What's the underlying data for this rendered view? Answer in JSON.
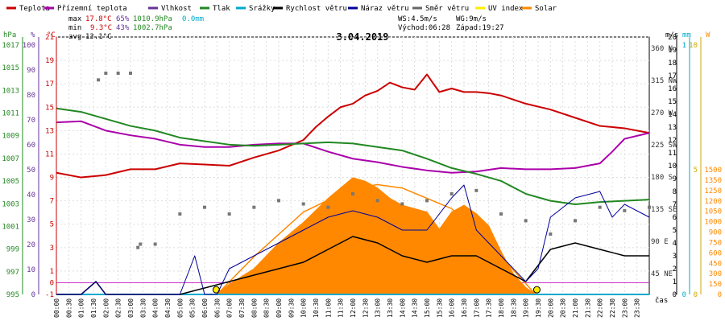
{
  "legend": [
    {
      "label": "Teplota",
      "color": "#cc0000"
    },
    {
      "label": "Přízemní teplota",
      "color": "#aa00aa"
    },
    {
      "label": "Vlhkost",
      "color": "#663399"
    },
    {
      "label": "Tlak",
      "color": "#228822"
    },
    {
      "label": "Srážky",
      "color": "#00aacc"
    },
    {
      "label": "Rychlost větru",
      "color": "#000000"
    },
    {
      "label": "Náraz větru",
      "color": "#000099"
    },
    {
      "label": "Směr větru",
      "color": "#666666"
    },
    {
      "label": "UV index",
      "color": "#ffee00"
    },
    {
      "label": "Solar",
      "color": "#ff8800"
    }
  ],
  "stats": {
    "max_label": "max",
    "max_temp": "17.8°C",
    "max_hum": "65%",
    "max_press": "1010.9hPa",
    "max_rain": "0.0mm",
    "min_label": "min",
    "min_temp": "9.3°C",
    "min_hum": "43%",
    "min_press": "1002.7hPa",
    "avg_label": "avg",
    "avg_temp": "13.1°C"
  },
  "wind_info": {
    "ws": "WS:4.5m/s",
    "wg": "WG:9m/s",
    "sunrise": "Východ:06:28",
    "sunset": "Západ:19:27"
  },
  "chart_data": {
    "type": "line",
    "title": "3.04.2019",
    "xlabel": "čas",
    "x_ticks": [
      "00:00",
      "00:30",
      "01:00",
      "01:30",
      "02:00",
      "02:30",
      "03:00",
      "03:30",
      "04:00",
      "04:30",
      "05:00",
      "05:30",
      "06:00",
      "06:30",
      "07:00",
      "07:30",
      "08:00",
      "08:30",
      "09:00",
      "09:30",
      "10:00",
      "10:30",
      "11:00",
      "11:30",
      "12:00",
      "12:30",
      "13:00",
      "13:30",
      "14:00",
      "14:30",
      "15:00",
      "15:30",
      "16:00",
      "16:30",
      "17:00",
      "17:30",
      "18:00",
      "18:30",
      "19:00",
      "19:30",
      "20:00",
      "20:30",
      "21:00",
      "21:30",
      "22:00",
      "22:30",
      "23:00",
      "23:30"
    ],
    "axes": {
      "hPa": {
        "label": "hPa",
        "ticks": [
          "1017",
          "1015",
          "1013",
          "1011",
          "1009",
          "1007",
          "1005",
          "1003",
          "1001",
          "999",
          "997",
          "995"
        ]
      },
      "percent": {
        "label": "%",
        "ticks": [
          "100",
          "90",
          "80",
          "70",
          "60",
          "50",
          "40",
          "30",
          "20",
          "10",
          "0"
        ]
      },
      "celsius": {
        "label": "°C",
        "ticks": [
          "21",
          "19",
          "17",
          "15",
          "13",
          "11",
          "9",
          "7",
          "5",
          "3",
          "1",
          "-1"
        ],
        "extra": "0"
      },
      "ms": {
        "label": "m/s",
        "ticks": [
          "20",
          "19",
          "18",
          "17",
          "16",
          "15",
          "14",
          "13",
          "12",
          "11",
          "10",
          "9",
          "8",
          "7",
          "6",
          "5",
          "4",
          "3",
          "2",
          "1",
          "0"
        ]
      },
      "direction": {
        "ticks": [
          "360 N",
          "315 NW",
          "270 W",
          "225 SW",
          "180 S",
          "135 SE",
          "90 E",
          "45 NE"
        ]
      },
      "mm": {
        "label": "mm",
        "ticks": [
          "1",
          "0"
        ]
      },
      "uv": {
        "ticks": [
          "10",
          "5",
          "0"
        ]
      },
      "solar": {
        "label": "W",
        "ticks": [
          "1500",
          "1350",
          "1250",
          "1200",
          "1050",
          "1000",
          "900",
          "750",
          "600",
          "450",
          "300",
          "150",
          "0"
        ]
      }
    },
    "series": [
      {
        "name": "Teplota",
        "unit": "°C",
        "x_hours": [
          0,
          1,
          2,
          3,
          4,
          5,
          6,
          7,
          8,
          9,
          10,
          10.5,
          11,
          11.5,
          12,
          12.5,
          13,
          13.5,
          14,
          14.5,
          15,
          15.5,
          16,
          16.5,
          17,
          17.5,
          18,
          19,
          20,
          21,
          22,
          23,
          24
        ],
        "values": [
          9.4,
          9.0,
          9.2,
          9.7,
          9.7,
          10.2,
          10.1,
          10.0,
          10.7,
          11.3,
          12.2,
          13.3,
          14.2,
          15.0,
          15.3,
          16.0,
          16.4,
          17.1,
          16.7,
          16.5,
          17.8,
          16.3,
          16.6,
          16.3,
          16.3,
          16.2,
          16.0,
          15.3,
          14.8,
          14.1,
          13.4,
          13.2,
          12.8
        ]
      },
      {
        "name": "Přízemní teplota",
        "unit": "°C",
        "x_hours": [
          0,
          1,
          2,
          3,
          4,
          5,
          6,
          7,
          8,
          9,
          10,
          11,
          12,
          13,
          14,
          15,
          16,
          17,
          18,
          19,
          20,
          21,
          22,
          22.5,
          23,
          24
        ],
        "values": [
          13.7,
          13.8,
          13.0,
          12.6,
          12.3,
          11.8,
          11.6,
          11.6,
          11.8,
          11.9,
          11.9,
          11.2,
          10.6,
          10.3,
          9.9,
          9.6,
          9.4,
          9.5,
          9.8,
          9.7,
          9.7,
          9.8,
          10.2,
          11.2,
          12.3,
          12.8
        ]
      },
      {
        "name": "Vlhkost",
        "unit": "%",
        "x_hours": [
          0,
          24
        ],
        "values": [
          null,
          null
        ]
      },
      {
        "name": "Tlak",
        "unit": "hPa",
        "x_hours": [
          0,
          1,
          2,
          3,
          4,
          5,
          6,
          7,
          8,
          9,
          10,
          11,
          12,
          13,
          14,
          15,
          16,
          17,
          18,
          19,
          20,
          21,
          22,
          23,
          24
        ],
        "values": [
          1010.9,
          1010.6,
          1010.0,
          1009.4,
          1009.0,
          1008.4,
          1008.1,
          1007.8,
          1007.7,
          1007.8,
          1007.9,
          1008.0,
          1007.9,
          1007.6,
          1007.3,
          1006.6,
          1005.8,
          1005.3,
          1004.7,
          1003.6,
          1003.0,
          1002.7,
          1002.9,
          1003.0,
          1003.1
        ]
      },
      {
        "name": "Srážky",
        "unit": "mm",
        "x_hours": [
          0,
          24
        ],
        "values": [
          0.0,
          0.0
        ]
      },
      {
        "name": "Rychlost větru",
        "unit": "m/s",
        "x_hours": [
          0,
          1,
          1.6,
          2,
          5,
          6,
          7,
          8,
          9,
          10,
          11,
          12,
          13,
          14,
          15,
          16,
          17,
          18,
          19,
          20,
          21,
          22,
          23,
          24
        ],
        "values": [
          0,
          0,
          1,
          0,
          0,
          0.5,
          1,
          1.5,
          2,
          2.5,
          3.5,
          4.5,
          4,
          3,
          2.5,
          3,
          3,
          2,
          1,
          3.5,
          4,
          3.5,
          3,
          3
        ]
      },
      {
        "name": "Náraz větru",
        "unit": "m/s",
        "x_hours": [
          0,
          1,
          1.6,
          2,
          5,
          5.6,
          6,
          6.5,
          7,
          8,
          9,
          10,
          11,
          12,
          13,
          14,
          15,
          16,
          16.5,
          17,
          18,
          19,
          19.5,
          20,
          21,
          22,
          22.5,
          23,
          24
        ],
        "values": [
          0,
          0,
          1,
          0,
          0,
          3,
          0,
          0,
          2,
          3,
          4,
          5,
          6,
          6.5,
          6,
          5,
          5,
          7.5,
          8.5,
          5,
          3,
          1,
          2,
          6,
          7.5,
          8,
          6,
          7,
          6
        ]
      },
      {
        "name": "Směr větru",
        "unit": "°",
        "x_hours": [
          1.7,
          2,
          2.5,
          3,
          3.3,
          3.4,
          4,
          5,
          6,
          7,
          8,
          9,
          10,
          11,
          12,
          13,
          14,
          15,
          16,
          17,
          18,
          19,
          20,
          21,
          22,
          23,
          24
        ],
        "values": [
          320,
          330,
          330,
          330,
          70,
          75,
          75,
          120,
          130,
          120,
          130,
          140,
          135,
          130,
          150,
          140,
          135,
          140,
          150,
          155,
          120,
          110,
          90,
          110,
          130,
          125,
          130
        ]
      },
      {
        "name": "Solar",
        "unit": "W",
        "x_hours": [
          6.5,
          7,
          8,
          9,
          10,
          11,
          12,
          12.5,
          13,
          13.5,
          14,
          15,
          15.5,
          16,
          16.5,
          17,
          17.5,
          18,
          18.5,
          19,
          19.4
        ],
        "values": [
          0,
          60,
          150,
          300,
          420,
          560,
          680,
          660,
          620,
          560,
          520,
          480,
          380,
          480,
          520,
          470,
          400,
          250,
          120,
          40,
          0
        ]
      },
      {
        "name": "UV index",
        "unit": "",
        "x_hours": [
          6.5,
          19.4
        ],
        "values": [
          0,
          0
        ]
      }
    ],
    "solar_curve": {
      "x_hours": [
        6.5,
        8,
        10,
        12,
        13,
        14,
        16,
        18,
        19.4
      ],
      "values": [
        0,
        220,
        480,
        620,
        640,
        620,
        500,
        220,
        0
      ]
    }
  }
}
